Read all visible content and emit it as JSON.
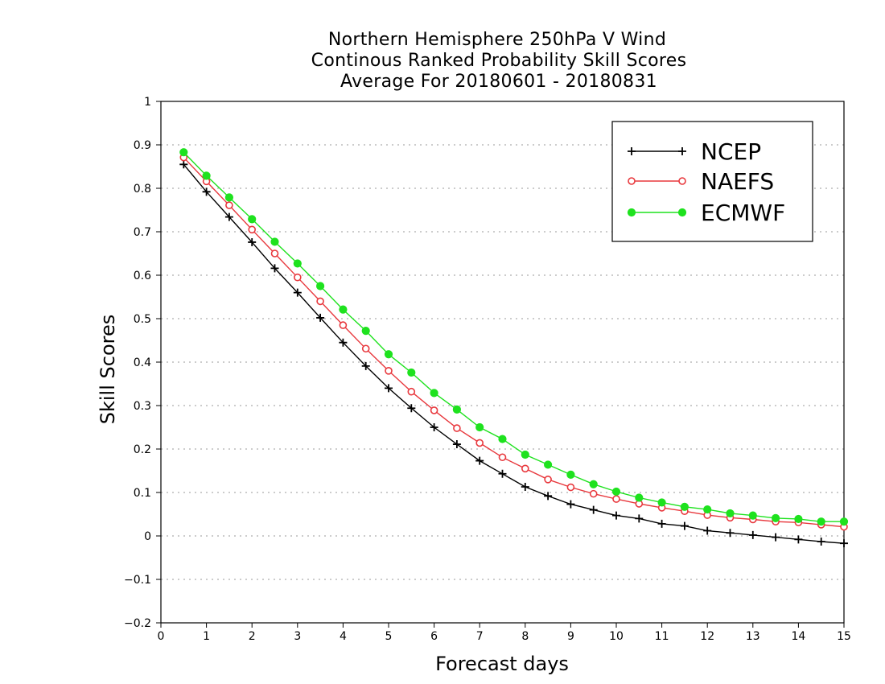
{
  "chart_data": {
    "type": "line",
    "title": [
      "Northern Hemisphere 250hPa V Wind",
      "Continous Ranked Probability Skill Scores",
      "Average For 20180601 - 20180831"
    ],
    "xlabel": "Forecast days",
    "ylabel": "Skill Scores",
    "xlim": [
      0,
      15
    ],
    "ylim": [
      -0.2,
      1
    ],
    "x_ticks": [
      0,
      1,
      2,
      3,
      4,
      5,
      6,
      7,
      8,
      9,
      10,
      11,
      12,
      13,
      14,
      15
    ],
    "y_ticks": [
      -0.2,
      -0.1,
      0,
      0.1,
      0.2,
      0.3,
      0.4,
      0.5,
      0.6,
      0.7,
      0.8,
      0.9,
      1
    ],
    "y_tick_labels": [
      "−0.2",
      "−0.1",
      "0",
      "0.1",
      "0.2",
      "0.3",
      "0.4",
      "0.5",
      "0.6",
      "0.7",
      "0.8",
      "0.9",
      "1"
    ],
    "grid": "horizontal dotted",
    "legend_position": "top-right",
    "x": [
      0.5,
      1,
      1.5,
      2,
      2.5,
      3,
      3.5,
      4,
      4.5,
      5,
      5.5,
      6,
      6.5,
      7,
      7.5,
      8,
      8.5,
      9,
      9.5,
      10,
      10.5,
      11,
      11.5,
      12,
      12.5,
      13,
      13.5,
      14,
      14.5,
      15
    ],
    "series": [
      {
        "name": "NCEP",
        "color": "#000000",
        "marker": "plus",
        "values": [
          0.855,
          0.792,
          0.734,
          0.676,
          0.616,
          0.56,
          0.502,
          0.445,
          0.391,
          0.34,
          0.294,
          0.25,
          0.211,
          0.173,
          0.143,
          0.113,
          0.092,
          0.073,
          0.06,
          0.047,
          0.04,
          0.028,
          0.023,
          0.012,
          0.007,
          0.002,
          -0.003,
          -0.008,
          -0.013,
          -0.017
        ]
      },
      {
        "name": "NAEFS",
        "color": "#e8383d",
        "marker": "open-circle",
        "values": [
          0.871,
          0.816,
          0.761,
          0.705,
          0.65,
          0.595,
          0.54,
          0.485,
          0.431,
          0.38,
          0.332,
          0.289,
          0.248,
          0.214,
          0.181,
          0.155,
          0.13,
          0.112,
          0.097,
          0.085,
          0.074,
          0.065,
          0.057,
          0.048,
          0.042,
          0.038,
          0.033,
          0.031,
          0.026,
          0.021
        ]
      },
      {
        "name": "ECMWF",
        "color": "#1ee21e",
        "marker": "filled-circle",
        "values": [
          0.883,
          0.829,
          0.779,
          0.729,
          0.677,
          0.627,
          0.575,
          0.521,
          0.472,
          0.418,
          0.376,
          0.329,
          0.291,
          0.25,
          0.223,
          0.187,
          0.164,
          0.141,
          0.119,
          0.102,
          0.088,
          0.077,
          0.067,
          0.061,
          0.052,
          0.047,
          0.041,
          0.039,
          0.033,
          0.033
        ]
      }
    ]
  }
}
